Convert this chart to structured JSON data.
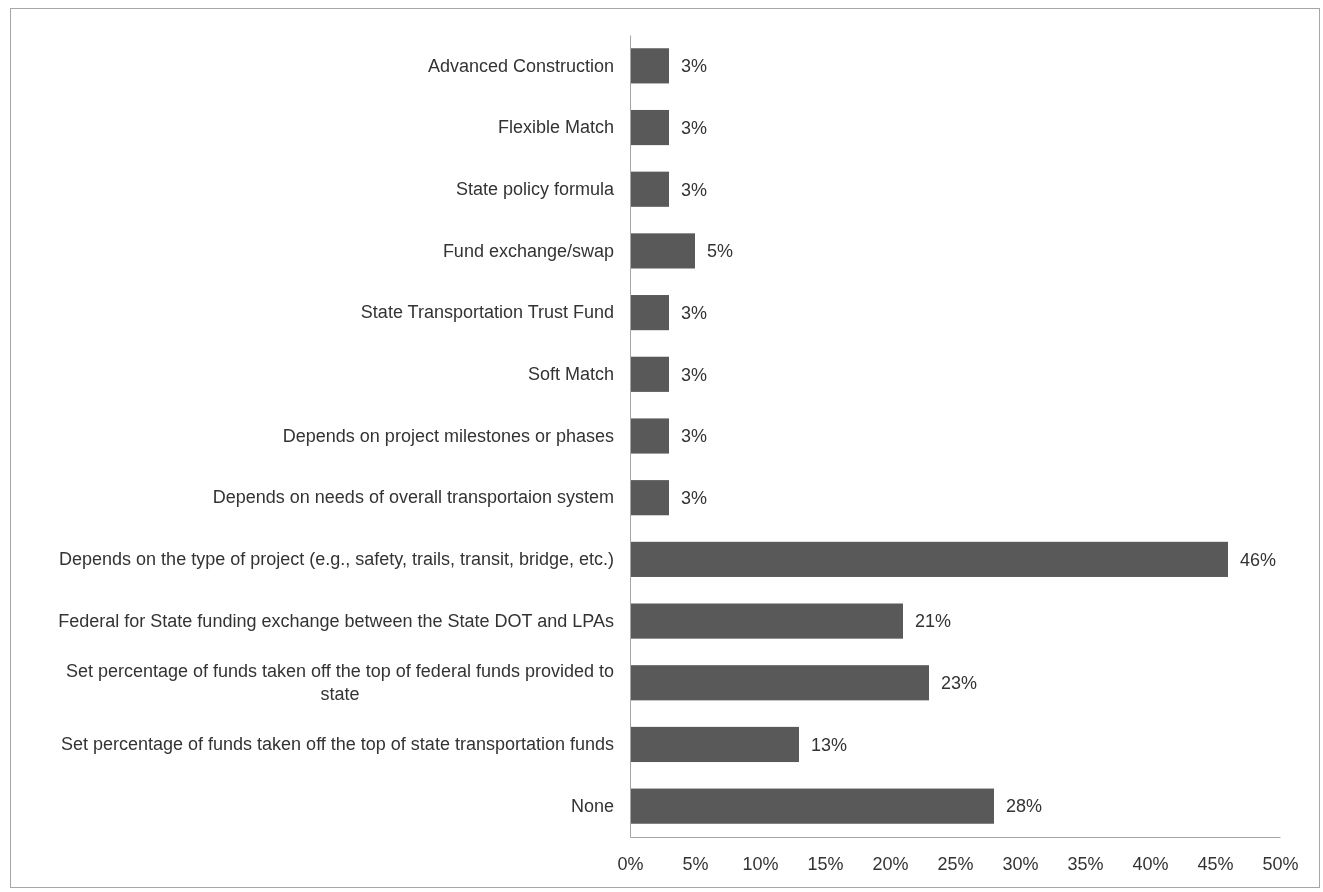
{
  "chart_data": {
    "type": "bar",
    "orientation": "horizontal",
    "categories": [
      "Advanced Construction",
      "Flexible Match",
      "State policy formula",
      "Fund exchange/swap",
      "State Transportation Trust Fund",
      "Soft Match",
      "Depends on project milestones or phases",
      "Depends on needs of overall transportaion system",
      "Depends on the type of project (e.g., safety, trails, transit, bridge, etc.)",
      "Federal for State funding exchange between the State DOT and LPAs",
      "Set percentage of funds taken off the top of federal funds provided to state",
      "Set percentage of funds taken off the top of state transportation funds",
      "None"
    ],
    "values": [
      3,
      3,
      3,
      5,
      3,
      3,
      3,
      3,
      46,
      21,
      23,
      13,
      28
    ],
    "value_labels": [
      "3%",
      "3%",
      "3%",
      "5%",
      "3%",
      "3%",
      "3%",
      "3%",
      "46%",
      "21%",
      "23%",
      "13%",
      "28%"
    ],
    "color": "#595959",
    "xlim": [
      0,
      50
    ],
    "xticks": [
      {
        "value": 0,
        "label": "0%"
      },
      {
        "value": 5,
        "label": "5%"
      },
      {
        "value": 10,
        "label": "10%"
      },
      {
        "value": 15,
        "label": "15%"
      },
      {
        "value": 20,
        "label": "20%"
      },
      {
        "value": 25,
        "label": "25%"
      },
      {
        "value": 30,
        "label": "30%"
      },
      {
        "value": 35,
        "label": "35%"
      },
      {
        "value": 40,
        "label": "40%"
      },
      {
        "value": 45,
        "label": "45%"
      },
      {
        "value": 50,
        "label": "50%"
      }
    ]
  }
}
